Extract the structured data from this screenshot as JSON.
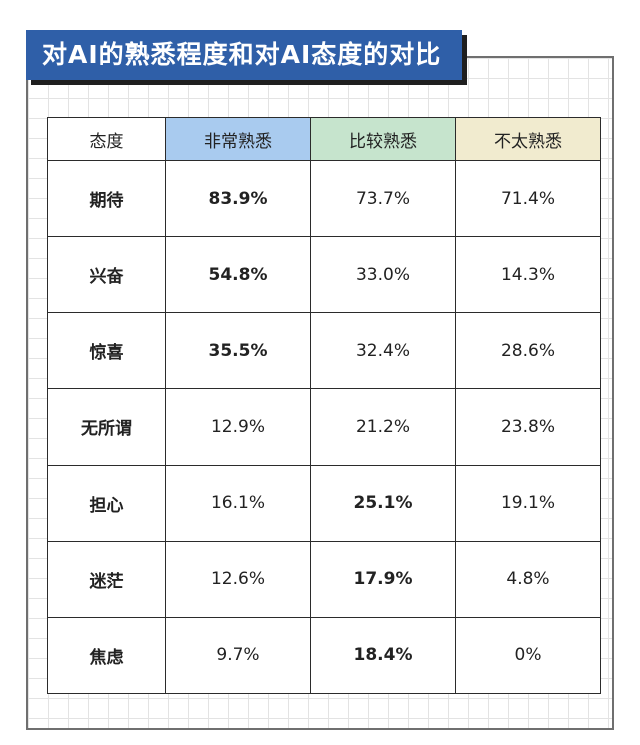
{
  "title": "对AI的熟悉程度和对AI态度的对比",
  "colors": {
    "title_bg": "#2f5fa8",
    "very_familiar": "#a9cbef",
    "fairly_familiar": "#c6e4cd",
    "not_familiar": "#f1ebcf"
  },
  "table": {
    "headers": [
      "态度",
      "非常熟悉",
      "比较熟悉",
      "不太熟悉"
    ],
    "rows": [
      {
        "label": "期待",
        "cells": [
          "83.9%",
          "73.7%",
          "71.4%"
        ],
        "bold": [
          0
        ]
      },
      {
        "label": "兴奋",
        "cells": [
          "54.8%",
          "33.0%",
          "14.3%"
        ],
        "bold": [
          0
        ]
      },
      {
        "label": "惊喜",
        "cells": [
          "35.5%",
          "32.4%",
          "28.6%"
        ],
        "bold": [
          0
        ]
      },
      {
        "label": "无所谓",
        "cells": [
          "12.9%",
          "21.2%",
          "23.8%"
        ],
        "bold": []
      },
      {
        "label": "担心",
        "cells": [
          "16.1%",
          "25.1%",
          "19.1%"
        ],
        "bold": [
          1
        ]
      },
      {
        "label": "迷茫",
        "cells": [
          "12.6%",
          "17.9%",
          "4.8%"
        ],
        "bold": [
          1
        ]
      },
      {
        "label": "焦虑",
        "cells": [
          "9.7%",
          "18.4%",
          "0%"
        ],
        "bold": [
          1
        ]
      }
    ]
  }
}
